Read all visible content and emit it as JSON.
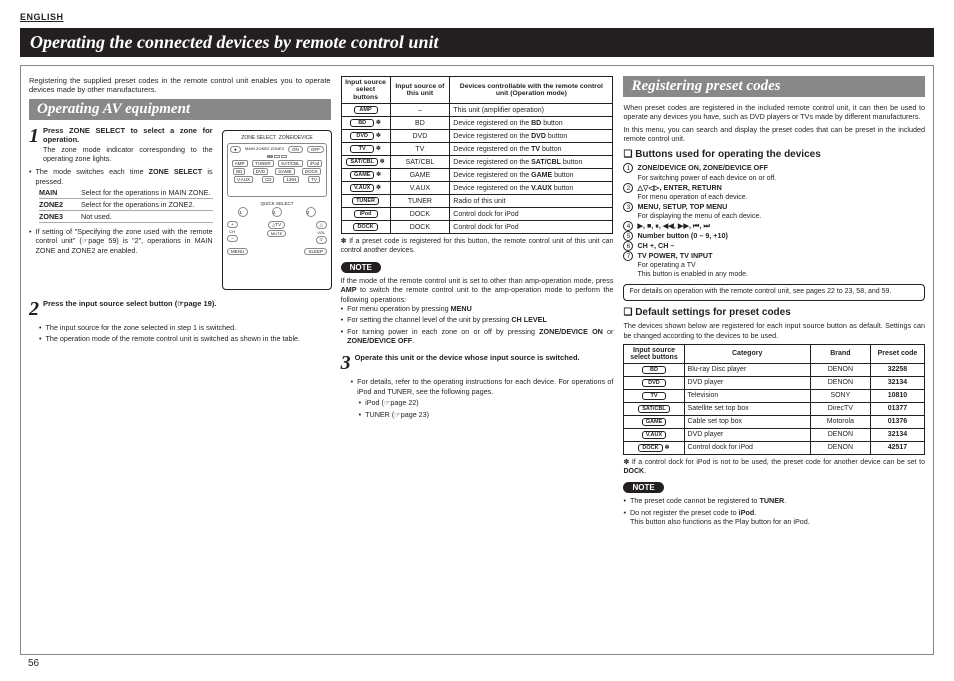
{
  "lang": "ENGLISH",
  "main_title": "Operating the connected devices by remote control unit",
  "page_number": "56",
  "left": {
    "intro": "Registering the supplied preset codes in the remote control unit enables you to operate devices made by other manufacturers.",
    "section": "Operating AV equipment",
    "step1_lead": "Press ZONE SELECT to select a zone for operation.",
    "step1_sub": "The zone mode indicator corresponding to the operating zone lights.",
    "step1_b1": "The mode switches each time ZONE SELECT is pressed.",
    "zones": [
      {
        "label": "MAIN",
        "desc": "Select for the operations in MAIN ZONE."
      },
      {
        "label": "ZONE2",
        "desc": "Select for the operations in ZONE2."
      },
      {
        "label": "ZONE3",
        "desc": "Not used."
      }
    ],
    "step1_b2": "If setting of \"Specifying the zone used with the remote control unit\" (☞page 59) is \"2\", operations in MAIN ZONE and ZONE2 are enabled.",
    "step2_lead": "Press the input source select button (☞page 19).",
    "step2_b1": "The input source for the zone selected in step 1 is switched.",
    "step2_b2": "The operation mode of the remote control unit is switched as shown in the table.",
    "step3_lead": "Operate this unit or the device whose input source is switched.",
    "step3_b1": "For details, refer to the operating instructions for each device. For operations of iPod and TUNER, see the following pages.",
    "step3_b2": "iPod (☞page 22)",
    "step3_b3": "TUNER (☞page 23)"
  },
  "mid": {
    "table_head": {
      "c1": "Input source select buttons",
      "c2": "Input source of this unit",
      "c3": "Devices controllable with the remote control unit (Operation mode)"
    },
    "rows": [
      {
        "btn": "AMP",
        "ast": "",
        "src": "–",
        "dev": "This unit (amplifier operation)"
      },
      {
        "btn": "BD",
        "ast": "*",
        "src": "BD",
        "dev": "Device registered on the BD button"
      },
      {
        "btn": "DVD",
        "ast": "*",
        "src": "DVD",
        "dev": "Device registered on the DVD button"
      },
      {
        "btn": "TV",
        "ast": "*",
        "src": "TV",
        "dev": "Device registered on the TV button"
      },
      {
        "btn": "SAT/CBL",
        "ast": "*",
        "src": "SAT/CBL",
        "dev": "Device registered on the SAT/CBL button"
      },
      {
        "btn": "GAME",
        "ast": "*",
        "src": "GAME",
        "dev": "Device registered on the GAME button"
      },
      {
        "btn": "V.AUX",
        "ast": "*",
        "src": "V.AUX",
        "dev": "Device registered on the V.AUX button"
      },
      {
        "btn": "TUNER",
        "ast": "",
        "src": "TUNER",
        "dev": "Radio of this unit"
      },
      {
        "btn": "iPod",
        "ast": "",
        "src": "DOCK",
        "dev": "Control dock for iPod"
      },
      {
        "btn": "DOCK",
        "ast": "",
        "src": "DOCK",
        "dev": "Control dock for iPod"
      }
    ],
    "table_foot": "✽ If a preset code is registered for this button, the remote control unit of this unit can control another devices.",
    "note_label": "NOTE",
    "note_body": "If the mode of the remote control unit is set to other than amp-operation mode, press AMP to switch the remote control unit to the amp-operation mode to perform the following operations:",
    "note_b1": "For menu operation by pressing MENU",
    "note_b2": "For setting the channel level of the unit by pressing CH LEVEL",
    "note_b3": "For turning power in each zone on or off by pressing ZONE/DEVICE ON or ZONE/DEVICE OFF."
  },
  "right": {
    "section": "Registering preset codes",
    "intro1": "When preset codes are registered in the included remote control unit, it can then be used to operate any devices you have, such as DVD players or TVs made by different manufacturers.",
    "intro2": "In this menu, you can search and display the preset codes that can be preset in the included remote control unit.",
    "sq1": "Buttons used for operating the devices",
    "items": [
      {
        "n": "1",
        "lbl": "ZONE/DEVICE ON, ZONE/DEVICE OFF",
        "sub": "For switching power of each device on or off."
      },
      {
        "n": "2",
        "lbl": "△▽◁▷, ENTER, RETURN",
        "sub": "For menu operation of each device."
      },
      {
        "n": "3",
        "lbl": "MENU, SETUP, TOP MENU",
        "sub": "For displaying the menu of each device."
      },
      {
        "n": "4",
        "lbl": "▶, ■, ⏸, ◀◀, ▶▶, ⏮, ⏭",
        "sub": ""
      },
      {
        "n": "5",
        "lbl": "Number button (0 – 9, +10)",
        "sub": ""
      },
      {
        "n": "6",
        "lbl": "CH +, CH –",
        "sub": ""
      },
      {
        "n": "7",
        "lbl": "TV POWER, TV INPUT",
        "sub": "For operating a TV\nThis button is enabled in any mode."
      }
    ],
    "box": "For details on operation with the remote control unit, see pages 22 to 23, 58, and 59.",
    "sq2": "Default settings for preset codes",
    "sq2_intro": "The devices shown below are registered for each input source button as default. Settings can be changed according to the devices to be used.",
    "preset_head": {
      "c1": "Input source select buttons",
      "c2": "Category",
      "c3": "Brand",
      "c4": "Preset code"
    },
    "preset_rows": [
      {
        "btn": "BD",
        "ast": "",
        "cat": "Blu-ray Disc player",
        "brand": "DENON",
        "code": "32258"
      },
      {
        "btn": "DVD",
        "ast": "",
        "cat": "DVD player",
        "brand": "DENON",
        "code": "32134"
      },
      {
        "btn": "TV",
        "ast": "",
        "cat": "Television",
        "brand": "SONY",
        "code": "10810"
      },
      {
        "btn": "SAT/CBL",
        "ast": "",
        "cat": "Satellite set top box",
        "brand": "DirecTV",
        "code": "01377"
      },
      {
        "btn": "GAME",
        "ast": "",
        "cat": "Cable set top box",
        "brand": "Motorola",
        "code": "01376"
      },
      {
        "btn": "V.AUX",
        "ast": "",
        "cat": "DVD player",
        "brand": "DENON",
        "code": "32134"
      },
      {
        "btn": "DOCK",
        "ast": "*",
        "cat": "Control dock for iPod",
        "brand": "DENON",
        "code": "42517"
      }
    ],
    "preset_foot": "✽ If a control dock for iPod is not to be used, the preset code for another device can be set to DOCK.",
    "note2_b1": "The preset code cannot be registered to TUNER.",
    "note2_b2": "Do not register the preset code to iPod.\nThis button also functions as the Play button for an iPod."
  }
}
